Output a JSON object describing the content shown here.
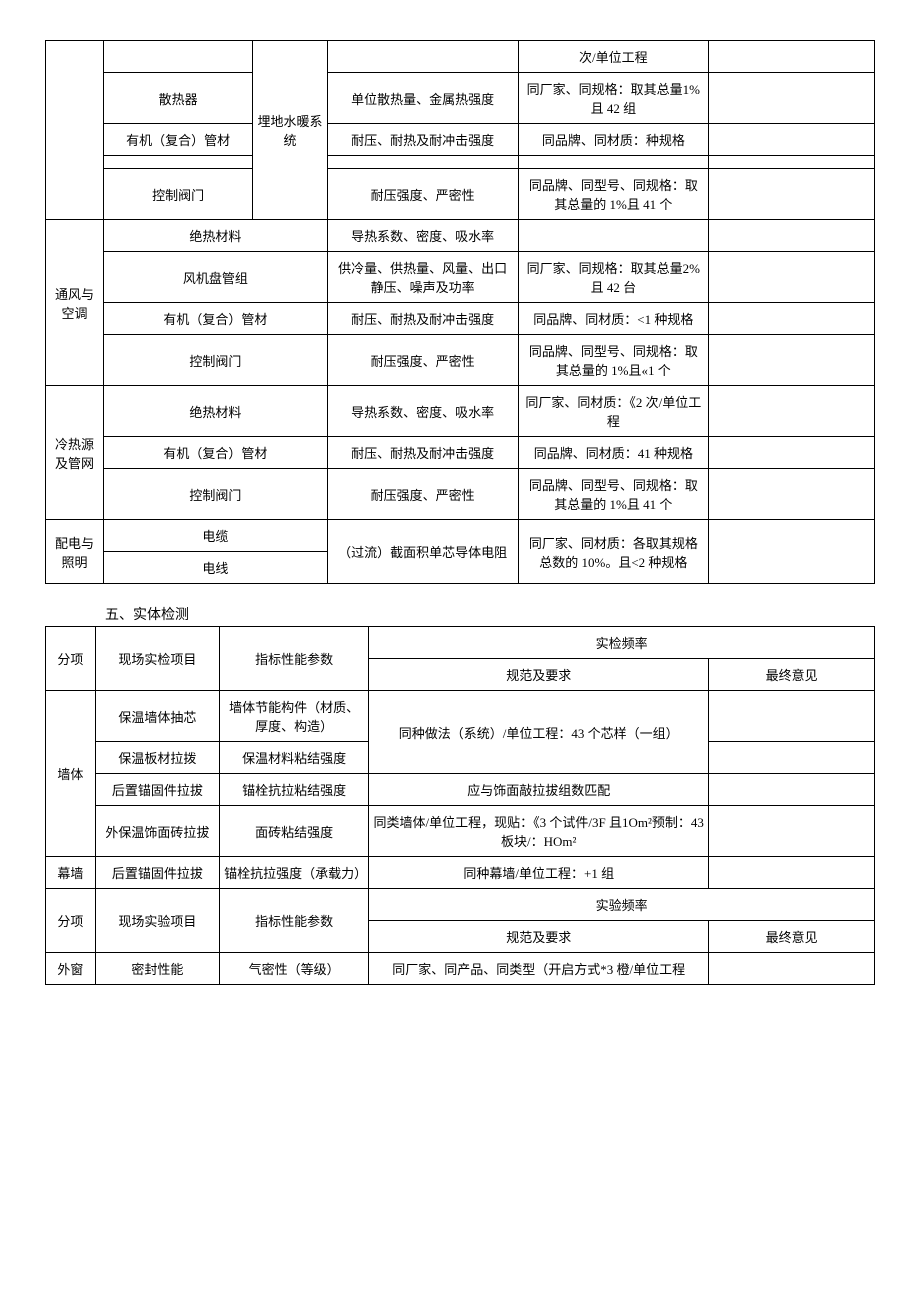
{
  "table1": {
    "rows": [
      {
        "c1": "",
        "c2": "",
        "c3": "埋地水暖系统",
        "c4": "",
        "c5": "次/单位工程",
        "c6": ""
      },
      {
        "c2": "散热器",
        "c4": "单位散热量、金属热强度",
        "c5": "同厂家、同规格：取其总量1%且 42 组",
        "c6": ""
      },
      {
        "c2": "有机（复合）管材",
        "c4": "耐压、耐热及耐冲击强度",
        "c5": "同品牌、同材质：种规格",
        "c6": ""
      },
      {
        "c2": "",
        "c4": "",
        "c5": "",
        "c6": ""
      },
      {
        "c2": "控制阀门",
        "c4": "耐压强度、严密性",
        "c5": "同品牌、同型号、同规格：取其总量的 1%且 41 个",
        "c6": ""
      },
      {
        "c1": "通风与空调",
        "c2": "绝热材料",
        "c4": "导热系数、密度、吸水率",
        "c5": "",
        "c6": ""
      },
      {
        "c2": "风机盘管组",
        "c4": "供冷量、供热量、风量、出口静压、噪声及功率",
        "c5": "同厂家、同规格：取其总量2%且 42 台",
        "c6": ""
      },
      {
        "c2": "有机（复合）管材",
        "c4": "耐压、耐热及耐冲击强度",
        "c5": "同品牌、同材质：<1 种规格",
        "c6": ""
      },
      {
        "c2": "控制阀门",
        "c4": "耐压强度、严密性",
        "c5": "同品牌、同型号、同规格：取其总量的 1%且«1 个",
        "c6": ""
      },
      {
        "c1": "冷热源及管网",
        "c2": "绝热材料",
        "c4": "导热系数、密度、吸水率",
        "c5": "同厂家、同材质：《2 次/单位工程",
        "c6": ""
      },
      {
        "c2": "有机（复合）管材",
        "c4": "耐压、耐热及耐冲击强度",
        "c5": "同品牌、同材质：41 种规格",
        "c6": ""
      },
      {
        "c2": "控制阀门",
        "c4": "耐压强度、严密性",
        "c5": "同品牌、同型号、同规格：取其总量的 1%且 41 个",
        "c6": ""
      },
      {
        "c1": "配电与照明",
        "c2a": "电缆",
        "c2b": "电线",
        "c4": "（过流）截面积单芯导体电阻",
        "c5": "同厂家、同材质：各取其规格总数的 10%。且<2 种规格",
        "c6": ""
      }
    ]
  },
  "section_title": "五、实体检测",
  "table2": {
    "header": {
      "h1": "分项",
      "h2": "现场实检项目",
      "h3": "指标性能参数",
      "h4": "实检频率",
      "h4a": "规范及要求",
      "h4b": "最终意见"
    },
    "rows": [
      {
        "c1": "墙体",
        "c2": "保温墙体抽芯",
        "c3": "墙体节能构件（材质、厚度、构造）",
        "c4": "同种做法（系统）/单位工程：43 个芯样（一组）",
        "c5": ""
      },
      {
        "c2": "保温板材拉拨",
        "c3": "保温材料粘结强度",
        "c5": ""
      },
      {
        "c2": "后置锚固件拉拔",
        "c3": "锚栓抗拉粘结强度",
        "c4": "应与饰面敲拉拔组数匹配",
        "c5": ""
      },
      {
        "c2": "外保温饰面砖拉拔",
        "c3": "面砖粘结强度",
        "c4": "同类墙体/单位工程，现贴：《3 个试件/3F 且1Om²预制：43 板块/：HOm²",
        "c5": ""
      },
      {
        "c1": "幕墙",
        "c2": "后置锚固件拉拔",
        "c3": "锚栓抗拉强度（承载力）",
        "c4": "同种幕墙/单位工程：+1 组",
        "c5": ""
      }
    ],
    "header2": {
      "h1": "分项",
      "h2": "现场实验项目",
      "h3": "指标性能参数",
      "h4": "实验频率",
      "h4a": "规范及要求",
      "h4b": "最终意见"
    },
    "rows2": [
      {
        "c1": "外窗",
        "c2": "密封性能",
        "c3": "气密性（等级）",
        "c4": "同厂家、同产品、同类型（开启方式*3 橙/单位工程",
        "c5": ""
      }
    ]
  }
}
